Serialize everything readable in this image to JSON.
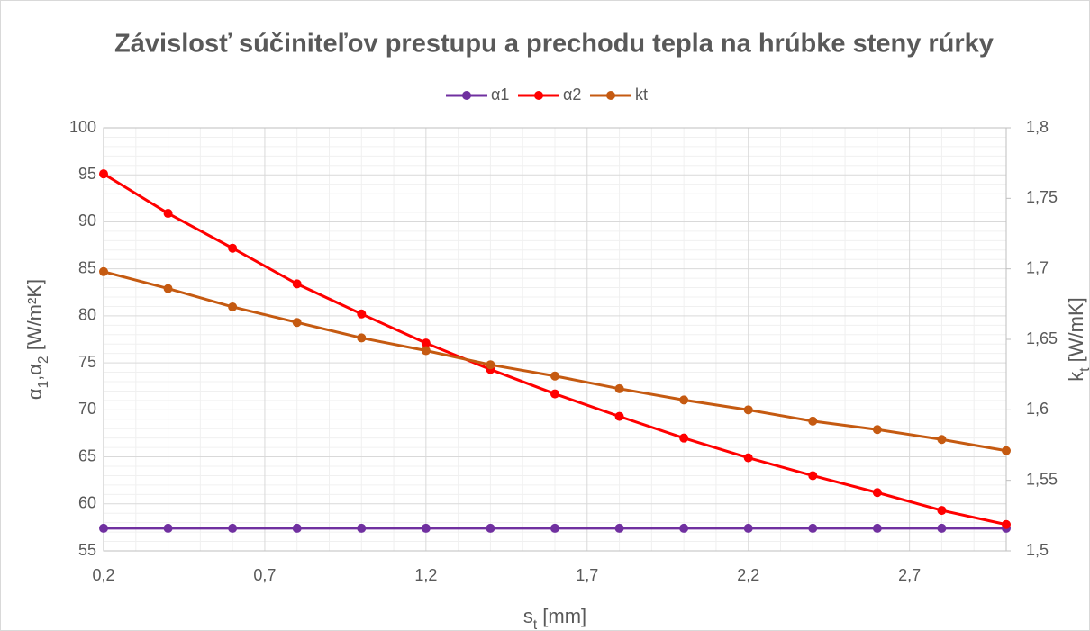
{
  "chart_data": {
    "type": "line",
    "title": "Závislosť súčiniteľov prestupu a prechodu tepla na hrúbke steny rúrky",
    "xlabel": [
      {
        "text": "s"
      },
      {
        "text": "t",
        "sub": true
      },
      {
        "text": " [mm]"
      }
    ],
    "ylabel": [
      {
        "text": "α"
      },
      {
        "text": "1",
        "sub": true
      },
      {
        "text": ",α"
      },
      {
        "text": "2",
        "sub": true
      },
      {
        "text": " [W/m²K]"
      }
    ],
    "y2label": [
      {
        "text": "k"
      },
      {
        "text": "t",
        "sub": true
      },
      {
        "text": " [W/mK]"
      }
    ],
    "x": [
      0.2,
      0.4,
      0.6,
      0.8,
      1.0,
      1.2,
      1.4,
      1.6,
      1.8,
      2.0,
      2.2,
      2.4,
      2.6,
      2.8,
      3.0
    ],
    "xlim": [
      0.2,
      3.0
    ],
    "xticks": [
      {
        "value": 0.2,
        "label": "0,2"
      },
      {
        "value": 0.7,
        "label": "0,7"
      },
      {
        "value": 1.2,
        "label": "1,2"
      },
      {
        "value": 1.7,
        "label": "1,7"
      },
      {
        "value": 2.2,
        "label": "2,2"
      },
      {
        "value": 2.7,
        "label": "2,7"
      }
    ],
    "ylim": [
      55,
      100
    ],
    "yticks": [
      55,
      60,
      65,
      70,
      75,
      80,
      85,
      90,
      95,
      100
    ],
    "y2lim": [
      1.5,
      1.8
    ],
    "y2ticks": [
      {
        "value": 1.5,
        "label": "1,5"
      },
      {
        "value": 1.55,
        "label": "1,55"
      },
      {
        "value": 1.6,
        "label": "1,6"
      },
      {
        "value": 1.65,
        "label": "1,65"
      },
      {
        "value": 1.7,
        "label": "1,7"
      },
      {
        "value": 1.75,
        "label": "1,75"
      },
      {
        "value": 1.8,
        "label": "1,8"
      }
    ],
    "grid": true,
    "minor_grid": true,
    "legend": "top",
    "series": [
      {
        "name": "α1",
        "color": "#7030a0",
        "values": [
          57.4,
          57.4,
          57.4,
          57.4,
          57.4,
          57.4,
          57.4,
          57.4,
          57.4,
          57.4,
          57.4,
          57.4,
          57.4,
          57.4,
          57.4
        ]
      },
      {
        "name": "α2",
        "color": "#ff0000",
        "values": [
          95.1,
          90.9,
          87.2,
          83.4,
          80.2,
          77.1,
          74.3,
          71.7,
          69.3,
          67.0,
          64.9,
          63.0,
          61.2,
          59.3,
          57.8
        ]
      },
      {
        "name": "kt",
        "color": "#c55a11",
        "axis": "y2",
        "values": [
          1.698,
          1.686,
          1.673,
          1.662,
          1.651,
          1.642,
          1.632,
          1.624,
          1.615,
          1.607,
          1.6,
          1.592,
          1.586,
          1.579,
          1.571
        ]
      }
    ]
  }
}
